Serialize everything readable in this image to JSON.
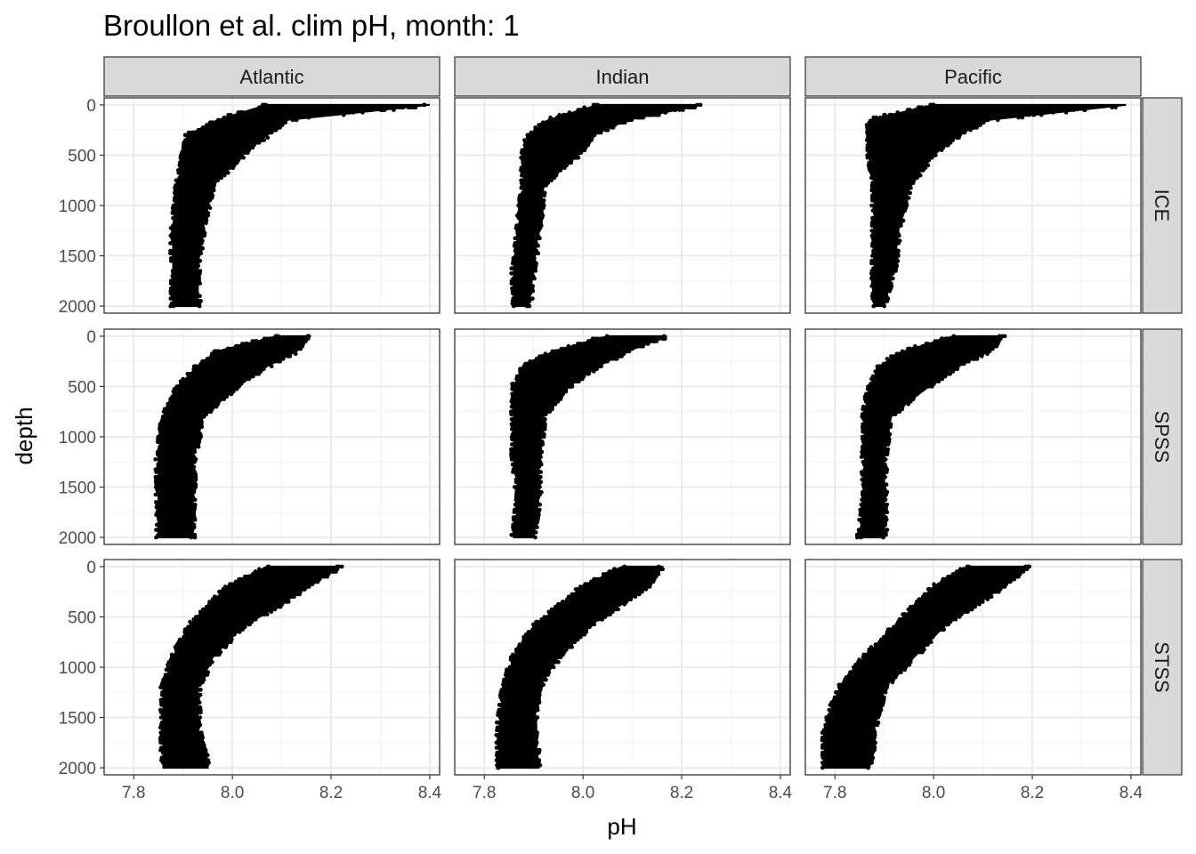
{
  "chart_data": {
    "type": "scatter",
    "title": "Broullon et al. clim pH, month: 1",
    "xlabel": "pH",
    "ylabel": "depth",
    "xlim": [
      7.74,
      8.42
    ],
    "ylim": [
      2070,
      -70
    ],
    "y_reversed": true,
    "x_ticks": [
      7.8,
      8.0,
      8.2,
      8.4
    ],
    "x_tick_labels": [
      "7.8",
      "8.0",
      "8.2",
      "8.4"
    ],
    "y_ticks": [
      0,
      500,
      1000,
      1500,
      2000
    ],
    "y_tick_labels": [
      "0",
      "500",
      "1000",
      "1500",
      "2000"
    ],
    "facet_columns": [
      "Atlantic",
      "Indian",
      "Pacific"
    ],
    "facet_rows": [
      "ICE",
      "SPSS",
      "STSS"
    ],
    "panels": [
      {
        "basin": "Atlantic",
        "zone": "ICE",
        "profile": [
          {
            "depth": 0,
            "ph_min": 8.07,
            "ph_max": 8.4
          },
          {
            "depth": 150,
            "ph_min": 7.97,
            "ph_max": 8.11
          },
          {
            "depth": 300,
            "ph_min": 7.91,
            "ph_max": 8.07
          },
          {
            "depth": 500,
            "ph_min": 7.9,
            "ph_max": 8.02
          },
          {
            "depth": 800,
            "ph_min": 7.89,
            "ph_max": 7.96
          },
          {
            "depth": 1200,
            "ph_min": 7.88,
            "ph_max": 7.94
          },
          {
            "depth": 1600,
            "ph_min": 7.88,
            "ph_max": 7.93
          },
          {
            "depth": 2000,
            "ph_min": 7.88,
            "ph_max": 7.93
          }
        ]
      },
      {
        "basin": "Indian",
        "zone": "ICE",
        "profile": [
          {
            "depth": 0,
            "ph_min": 8.03,
            "ph_max": 8.24
          },
          {
            "depth": 150,
            "ph_min": 7.93,
            "ph_max": 8.09
          },
          {
            "depth": 300,
            "ph_min": 7.89,
            "ph_max": 8.02
          },
          {
            "depth": 500,
            "ph_min": 7.88,
            "ph_max": 7.99
          },
          {
            "depth": 800,
            "ph_min": 7.88,
            "ph_max": 7.92
          },
          {
            "depth": 1200,
            "ph_min": 7.87,
            "ph_max": 7.91
          },
          {
            "depth": 1600,
            "ph_min": 7.86,
            "ph_max": 7.9
          },
          {
            "depth": 2000,
            "ph_min": 7.86,
            "ph_max": 7.89
          }
        ]
      },
      {
        "basin": "Pacific",
        "zone": "ICE",
        "profile": [
          {
            "depth": 0,
            "ph_min": 8.0,
            "ph_max": 8.39
          },
          {
            "depth": 150,
            "ph_min": 7.87,
            "ph_max": 8.11
          },
          {
            "depth": 300,
            "ph_min": 7.87,
            "ph_max": 8.05
          },
          {
            "depth": 500,
            "ph_min": 7.87,
            "ph_max": 8.0
          },
          {
            "depth": 800,
            "ph_min": 7.88,
            "ph_max": 7.95
          },
          {
            "depth": 1200,
            "ph_min": 7.88,
            "ph_max": 7.93
          },
          {
            "depth": 1600,
            "ph_min": 7.88,
            "ph_max": 7.92
          },
          {
            "depth": 2000,
            "ph_min": 7.88,
            "ph_max": 7.9
          }
        ]
      },
      {
        "basin": "Atlantic",
        "zone": "SPSS",
        "profile": [
          {
            "depth": 0,
            "ph_min": 8.09,
            "ph_max": 8.15
          },
          {
            "depth": 150,
            "ph_min": 7.97,
            "ph_max": 8.13
          },
          {
            "depth": 300,
            "ph_min": 7.93,
            "ph_max": 8.07
          },
          {
            "depth": 500,
            "ph_min": 7.89,
            "ph_max": 8.01
          },
          {
            "depth": 800,
            "ph_min": 7.86,
            "ph_max": 7.94
          },
          {
            "depth": 1200,
            "ph_min": 7.85,
            "ph_max": 7.92
          },
          {
            "depth": 1600,
            "ph_min": 7.85,
            "ph_max": 7.92
          },
          {
            "depth": 2000,
            "ph_min": 7.85,
            "ph_max": 7.92
          }
        ]
      },
      {
        "basin": "Indian",
        "zone": "SPSS",
        "profile": [
          {
            "depth": 0,
            "ph_min": 8.05,
            "ph_max": 8.17
          },
          {
            "depth": 150,
            "ph_min": 7.94,
            "ph_max": 8.09
          },
          {
            "depth": 300,
            "ph_min": 7.88,
            "ph_max": 8.03
          },
          {
            "depth": 500,
            "ph_min": 7.86,
            "ph_max": 7.97
          },
          {
            "depth": 800,
            "ph_min": 7.86,
            "ph_max": 7.92
          },
          {
            "depth": 1200,
            "ph_min": 7.86,
            "ph_max": 7.91
          },
          {
            "depth": 1600,
            "ph_min": 7.87,
            "ph_max": 7.91
          },
          {
            "depth": 2000,
            "ph_min": 7.86,
            "ph_max": 7.9
          }
        ]
      },
      {
        "basin": "Pacific",
        "zone": "SPSS",
        "profile": [
          {
            "depth": 0,
            "ph_min": 8.04,
            "ph_max": 8.14
          },
          {
            "depth": 150,
            "ph_min": 7.94,
            "ph_max": 8.11
          },
          {
            "depth": 300,
            "ph_min": 7.89,
            "ph_max": 8.05
          },
          {
            "depth": 500,
            "ph_min": 7.87,
            "ph_max": 7.99
          },
          {
            "depth": 800,
            "ph_min": 7.86,
            "ph_max": 7.91
          },
          {
            "depth": 1200,
            "ph_min": 7.86,
            "ph_max": 7.9
          },
          {
            "depth": 1600,
            "ph_min": 7.86,
            "ph_max": 7.9
          },
          {
            "depth": 2000,
            "ph_min": 7.85,
            "ph_max": 7.9
          }
        ]
      },
      {
        "basin": "Atlantic",
        "zone": "STSS",
        "profile": [
          {
            "depth": 0,
            "ph_min": 8.07,
            "ph_max": 8.22
          },
          {
            "depth": 200,
            "ph_min": 7.99,
            "ph_max": 8.15
          },
          {
            "depth": 400,
            "ph_min": 7.95,
            "ph_max": 8.09
          },
          {
            "depth": 600,
            "ph_min": 7.91,
            "ph_max": 8.02
          },
          {
            "depth": 900,
            "ph_min": 7.88,
            "ph_max": 7.96
          },
          {
            "depth": 1200,
            "ph_min": 7.86,
            "ph_max": 7.93
          },
          {
            "depth": 1600,
            "ph_min": 7.86,
            "ph_max": 7.93
          },
          {
            "depth": 2000,
            "ph_min": 7.86,
            "ph_max": 7.95
          }
        ]
      },
      {
        "basin": "Indian",
        "zone": "STSS",
        "profile": [
          {
            "depth": 0,
            "ph_min": 8.08,
            "ph_max": 8.16
          },
          {
            "depth": 200,
            "ph_min": 8.0,
            "ph_max": 8.13
          },
          {
            "depth": 400,
            "ph_min": 7.95,
            "ph_max": 8.07
          },
          {
            "depth": 600,
            "ph_min": 7.9,
            "ph_max": 8.01
          },
          {
            "depth": 900,
            "ph_min": 7.86,
            "ph_max": 7.95
          },
          {
            "depth": 1200,
            "ph_min": 7.84,
            "ph_max": 7.91
          },
          {
            "depth": 1600,
            "ph_min": 7.83,
            "ph_max": 7.9
          },
          {
            "depth": 2000,
            "ph_min": 7.83,
            "ph_max": 7.91
          }
        ]
      },
      {
        "basin": "Pacific",
        "zone": "STSS",
        "profile": [
          {
            "depth": 0,
            "ph_min": 8.07,
            "ph_max": 8.19
          },
          {
            "depth": 200,
            "ph_min": 8.0,
            "ph_max": 8.14
          },
          {
            "depth": 400,
            "ph_min": 7.96,
            "ph_max": 8.08
          },
          {
            "depth": 600,
            "ph_min": 7.92,
            "ph_max": 8.02
          },
          {
            "depth": 900,
            "ph_min": 7.86,
            "ph_max": 7.96
          },
          {
            "depth": 1200,
            "ph_min": 7.81,
            "ph_max": 7.9
          },
          {
            "depth": 1600,
            "ph_min": 7.78,
            "ph_max": 7.88
          },
          {
            "depth": 2000,
            "ph_min": 7.78,
            "ph_max": 7.87
          }
        ]
      }
    ]
  }
}
